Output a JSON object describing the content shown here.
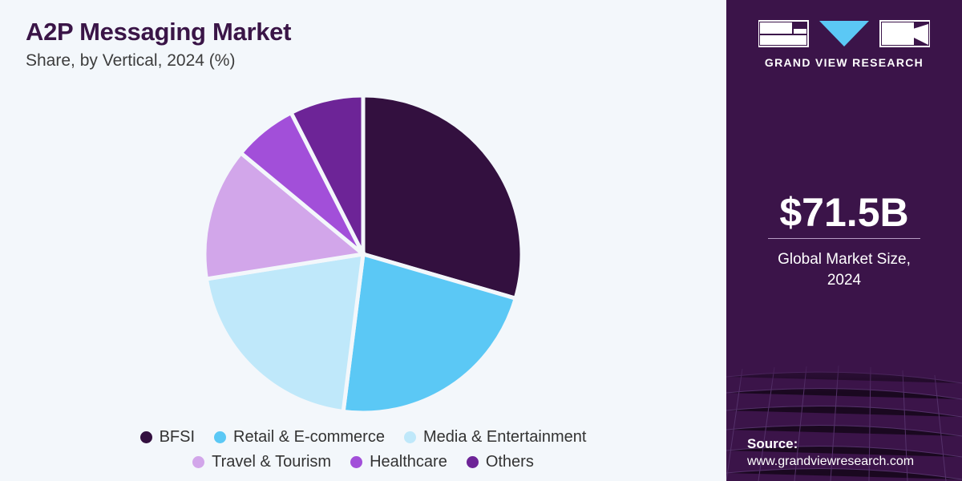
{
  "header": {
    "title": "A2P Messaging Market",
    "subtitle": "Share, by Vertical, 2024 (%)"
  },
  "chart_data": {
    "type": "pie",
    "title": "A2P Messaging Market",
    "subtitle": "Share, by Vertical, 2024 (%)",
    "categories": [
      "BFSI",
      "Retail & E-commerce",
      "Media & Entertainment",
      "Travel & Tourism",
      "Healthcare",
      "Others"
    ],
    "values": [
      29.5,
      22.5,
      20.5,
      13.5,
      6.5,
      7.5
    ],
    "colors": [
      "#33103f",
      "#5bc8f5",
      "#bfe8fa",
      "#d2a6ea",
      "#a24fd9",
      "#6d2497"
    ],
    "start_angle_deg": 0,
    "direction": "clockwise",
    "legend_position": "bottom"
  },
  "legend": {
    "rows": [
      [
        "BFSI",
        "Retail & E-commerce",
        "Media & Entertainment"
      ],
      [
        "Travel & Tourism",
        "Healthcare",
        "Others"
      ]
    ]
  },
  "sidebar": {
    "brand": "GRAND VIEW RESEARCH",
    "logo_icon": "gvr-logo-icon",
    "market_size": "$71.5B",
    "market_size_label_line1": "Global Market Size,",
    "market_size_label_line2": "2024",
    "source_title": "Source:",
    "source_url": "www.grandviewresearch.com",
    "background_color": "#3b1449"
  }
}
